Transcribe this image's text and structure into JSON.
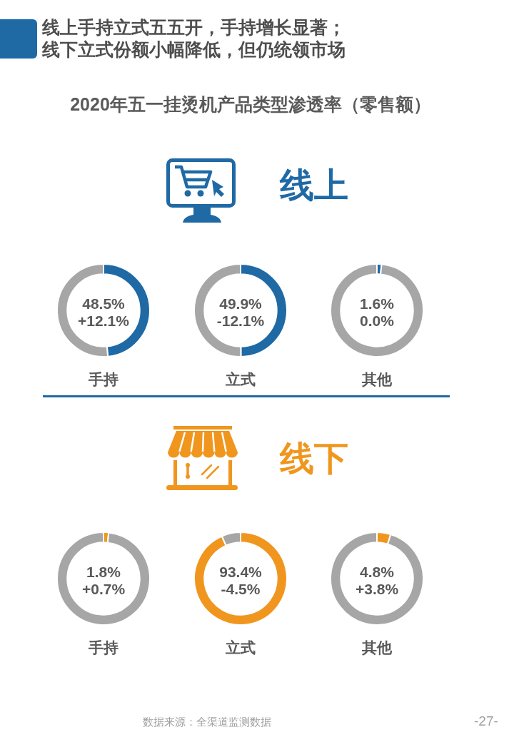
{
  "chart_data": [
    {
      "type": "other",
      "title": "线上手持立式五五开，手持增长显著；线下立式份额小幅降低，但仍统领市场",
      "subtitle": "2020年五一挂烫机产品类型渗透率（零售额）"
    },
    {
      "type": "other",
      "title": "线上"
    },
    {
      "type": "donut",
      "title": "手持",
      "categories": [
        null,
        null
      ],
      "values": [
        48.5,
        51.5
      ],
      "colors": [
        "#1f69a5",
        "#a6a6a6"
      ],
      "value_labels": [
        "48.5%",
        null
      ],
      "annotations": [
        "+12.1%"
      ]
    },
    {
      "type": "donut",
      "title": "立式",
      "categories": [
        null,
        null
      ],
      "values": [
        49.9,
        50.1
      ],
      "colors": [
        "#1f69a5",
        "#a6a6a6"
      ],
      "value_labels": [
        "49.9%",
        null
      ],
      "annotations": [
        "-12.1%"
      ]
    },
    {
      "type": "donut",
      "title": "其他",
      "categories": [
        null,
        null
      ],
      "values": [
        1.6,
        98.4
      ],
      "colors": [
        "#1f69a5",
        "#a6a6a6"
      ],
      "value_labels": [
        "1.6%",
        null
      ],
      "annotations": [
        "0.0%"
      ]
    },
    {
      "type": "other",
      "title": "线下"
    },
    {
      "type": "donut",
      "title": "手持",
      "categories": [
        null,
        null
      ],
      "values": [
        1.8,
        98.2
      ],
      "colors": [
        "#f0961e",
        "#a6a6a6"
      ],
      "value_labels": [
        "1.8%",
        null
      ],
      "annotations": [
        "+0.7%"
      ]
    },
    {
      "type": "donut",
      "title": "立式",
      "categories": [
        null,
        null
      ],
      "values": [
        93.4,
        6.6
      ],
      "colors": [
        "#f0961e",
        "#a6a6a6"
      ],
      "value_labels": [
        "93.4%",
        null
      ],
      "annotations": [
        "-4.5%"
      ]
    },
    {
      "type": "donut",
      "title": "其他",
      "categories": [
        null,
        null
      ],
      "values": [
        4.8,
        95.2
      ],
      "colors": [
        "#f0961e",
        "#a6a6a6"
      ],
      "value_labels": [
        "4.8%",
        null
      ],
      "annotations": [
        "+3.8%"
      ]
    },
    {
      "type": "other",
      "annotations": [
        "数据来源：全渠道监测数据",
        "-27-"
      ]
    }
  ]
}
